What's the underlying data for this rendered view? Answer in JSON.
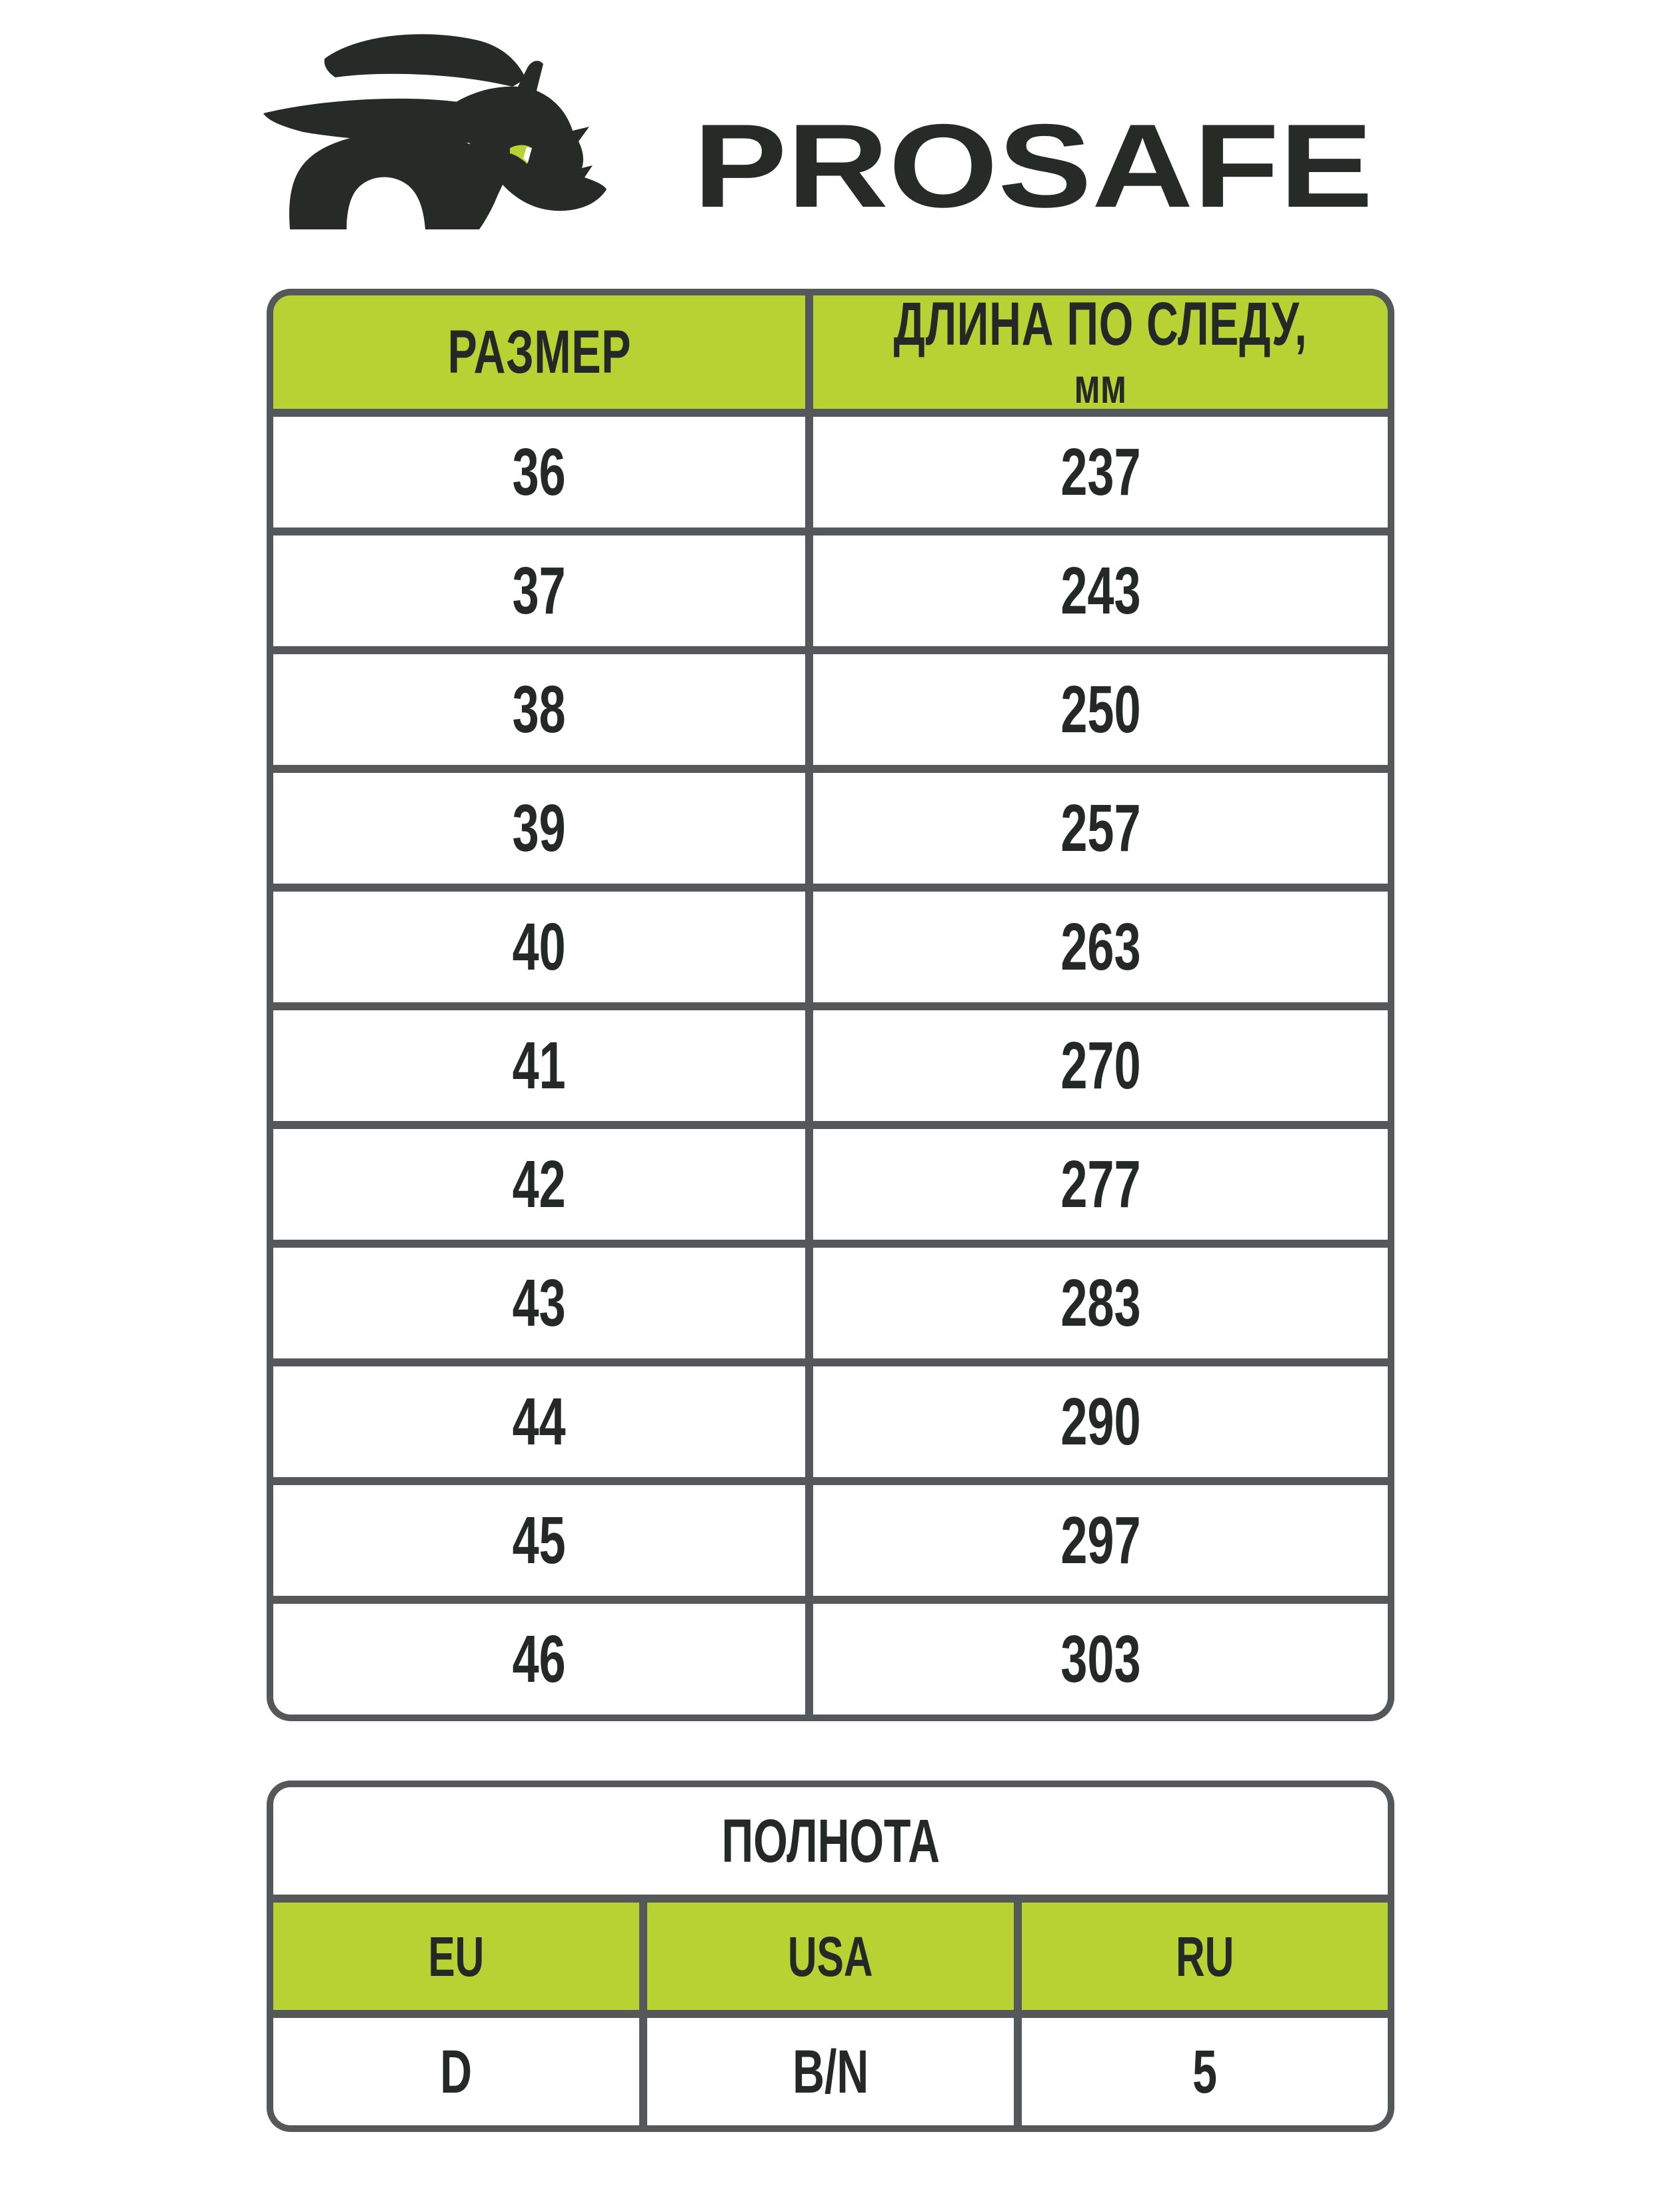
{
  "brand": {
    "name": "PROSAFE",
    "logo": "rhino-logo"
  },
  "colors": {
    "accent_green": "#b8d233",
    "border_gray": "#55585a",
    "text_dark": "#242826",
    "logo_charcoal": "#272b27",
    "background": "#ffffff"
  },
  "size_table": {
    "headers": {
      "size": "РАЗМЕР",
      "length_line1": "ДЛИНА ПО СЛЕДУ,",
      "length_line2": "мм"
    },
    "rows": [
      {
        "size": "36",
        "length": "237"
      },
      {
        "size": "37",
        "length": "243"
      },
      {
        "size": "38",
        "length": "250"
      },
      {
        "size": "39",
        "length": "257"
      },
      {
        "size": "40",
        "length": "263"
      },
      {
        "size": "41",
        "length": "270"
      },
      {
        "size": "42",
        "length": "277"
      },
      {
        "size": "43",
        "length": "283"
      },
      {
        "size": "44",
        "length": "290"
      },
      {
        "size": "45",
        "length": "297"
      },
      {
        "size": "46",
        "length": "303"
      }
    ]
  },
  "width_table": {
    "title": "ПОЛНОТА",
    "headers": [
      "EU",
      "USA",
      "RU"
    ],
    "values": [
      "D",
      "B/N",
      "5"
    ]
  }
}
